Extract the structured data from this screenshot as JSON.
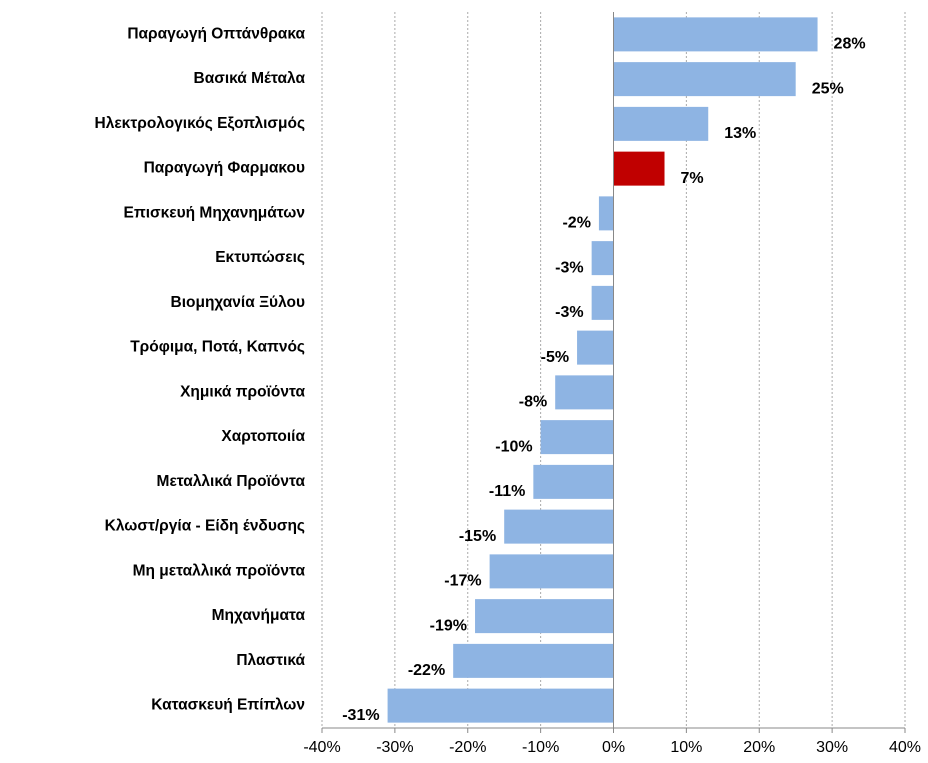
{
  "chart_data": {
    "type": "barh",
    "categories": [
      "Παραγωγή Οπτάνθρακα",
      "Βασικά Μέταλα",
      "Ηλεκτρολογικός Εξοπλισμός",
      "Παραγωγή Φαρμακου",
      "Επισκευή Μηχανημάτων",
      "Εκτυπώσεις",
      "Βιομηχανία Ξύλου",
      "Τρόφιμα, Ποτά, Καπνός",
      "Χημικά προϊόντα",
      "Χαρτοποιία",
      "Μεταλλικά Προϊόντα",
      "Κλωστ/ργία - Είδη ένδυσης",
      "Μη μεταλλικά προϊόντα",
      "Μηχανήματα",
      "Πλαστικά",
      "Κατασκευή Επίπλων"
    ],
    "values": [
      28,
      25,
      13,
      7,
      -2,
      -3,
      -3,
      -5,
      -8,
      -10,
      -11,
      -15,
      -17,
      -19,
      -22,
      -31
    ],
    "value_labels": [
      "28%",
      "25%",
      "13%",
      "7%",
      "-2%",
      "-3%",
      "-3%",
      "-5%",
      "-8%",
      "-10%",
      "-11%",
      "-15%",
      "-17%",
      "-19%",
      "-22%",
      "-31%"
    ],
    "colors": [
      "#8eb4e3",
      "#8eb4e3",
      "#8eb4e3",
      "#c00000",
      "#8eb4e3",
      "#8eb4e3",
      "#8eb4e3",
      "#8eb4e3",
      "#8eb4e3",
      "#8eb4e3",
      "#8eb4e3",
      "#8eb4e3",
      "#8eb4e3",
      "#8eb4e3",
      "#8eb4e3",
      "#8eb4e3"
    ],
    "xlim": [
      -40,
      40
    ],
    "xticks": [
      {
        "value": -40,
        "label": "-40%"
      },
      {
        "value": -30,
        "label": "-30%"
      },
      {
        "value": -20,
        "label": "-20%"
      },
      {
        "value": -10,
        "label": "-10%"
      },
      {
        "value": 0,
        "label": "0%"
      },
      {
        "value": 10,
        "label": "10%"
      },
      {
        "value": 20,
        "label": "20%"
      },
      {
        "value": 30,
        "label": "30%"
      },
      {
        "value": 40,
        "label": "40%"
      }
    ],
    "grid": true
  }
}
